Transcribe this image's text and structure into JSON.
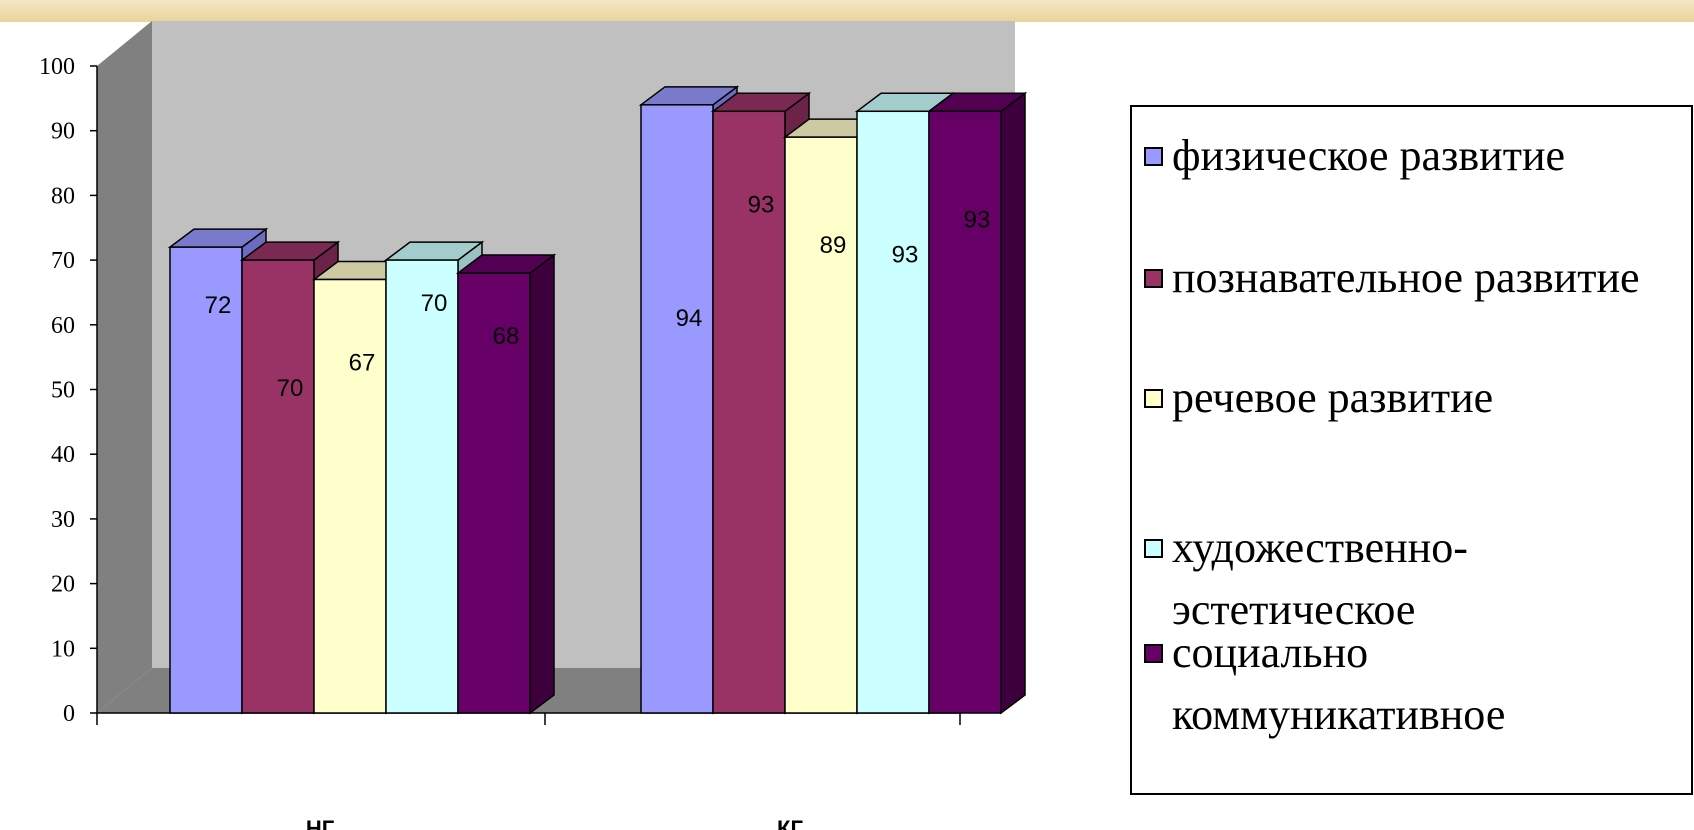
{
  "chart_data": {
    "type": "bar",
    "categories": [
      "НГ",
      "КГ"
    ],
    "series": [
      {
        "name": "физическое развитие",
        "values": [
          72,
          94
        ],
        "color": "#9999ff",
        "top_color": "#7a7acc",
        "side_color": "#6b6bc0"
      },
      {
        "name": "познавательное развитие",
        "values": [
          70,
          93
        ],
        "color": "#993366",
        "top_color": "#7a2952",
        "side_color": "#6b2447"
      },
      {
        "name": "речевое развитие",
        "values": [
          67,
          89
        ],
        "color": "#ffffcc",
        "top_color": "#ccc9a3",
        "side_color": "#c2c09a"
      },
      {
        "name": "художественно-эстетическое",
        "values": [
          70,
          93
        ],
        "color": "#ccffff",
        "top_color": "#a3cccc",
        "side_color": "#9ac2c2"
      },
      {
        "name": "социально коммуникативное",
        "values": [
          68,
          93
        ],
        "color": "#660066",
        "top_color": "#520052",
        "side_color": "#3d003d"
      }
    ],
    "data_labels": [
      [
        "72",
        "70",
        "67",
        "70",
        "68"
      ],
      [
        "94",
        "93",
        "89",
        "93",
        "93"
      ]
    ],
    "ylim": [
      0,
      100
    ],
    "yticks": [
      "0",
      "10",
      "20",
      "30",
      "40",
      "50",
      "60",
      "70",
      "80",
      "90",
      "100"
    ],
    "xlabel": "",
    "ylabel": "",
    "legend_position": "right",
    "style": "3d-clustered-column",
    "wall_color": "#c0c0c0",
    "wall_side_color": "#808080"
  }
}
